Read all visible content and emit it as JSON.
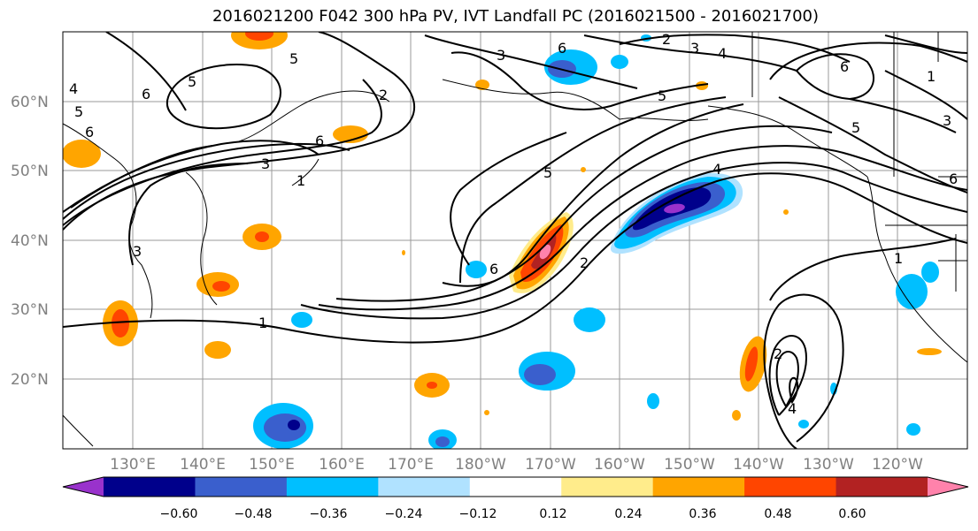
{
  "title": "2016021200 F042 300 hPa PV, IVT Landfall PC (2016021500 - 2016021700)",
  "map": {
    "lat_labels": [
      "60°N",
      "50°N",
      "40°N",
      "30°N",
      "20°N"
    ],
    "lon_labels": [
      "130°E",
      "140°E",
      "150°E",
      "160°E",
      "170°E",
      "180°W",
      "170°W",
      "160°W",
      "150°W",
      "140°W",
      "130°W",
      "120°W"
    ],
    "pv_contour_labels": [
      "1",
      "2",
      "3",
      "4",
      "5",
      "6",
      "6",
      "5",
      "6",
      "6",
      "5",
      "2",
      "3",
      "4",
      "5",
      "6",
      "4",
      "5",
      "6",
      "3",
      "3",
      "5",
      "1",
      "4",
      "2",
      "1",
      "1",
      "2",
      "3",
      "6"
    ]
  },
  "colorbar": {
    "ticks": [
      "−0.60",
      "−0.48",
      "−0.36",
      "−0.24",
      "−0.12",
      "0.12",
      "0.24",
      "0.36",
      "0.48",
      "0.60"
    ],
    "colors": [
      "#9932cc",
      "#00008b",
      "#3a5fcd",
      "#00bfff",
      "#b0e2ff",
      "#ffffff",
      "#ffec8b",
      "#ffa500",
      "#ff4500",
      "#b22222",
      "#ff82ab"
    ]
  }
}
